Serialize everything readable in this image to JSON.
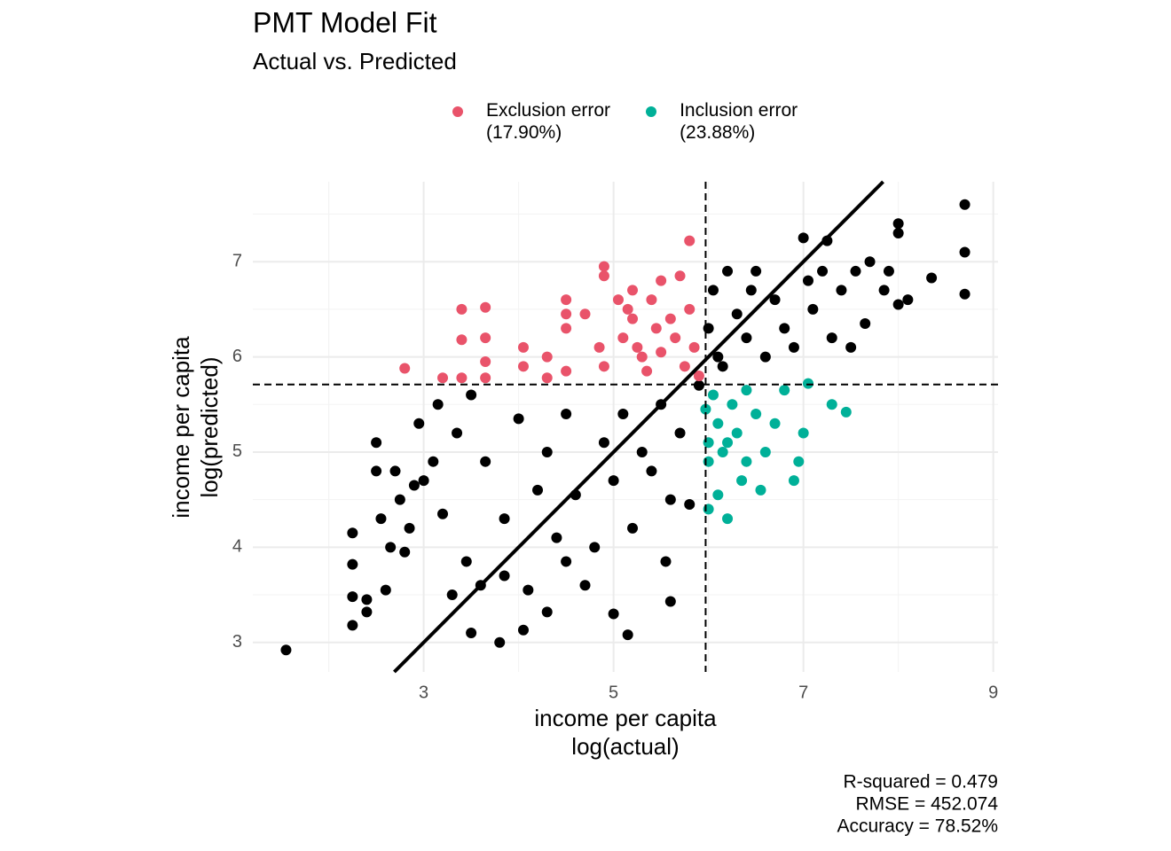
{
  "chart_data": {
    "type": "scatter",
    "title": "PMT Model Fit",
    "subtitle": "Actual vs. Predicted",
    "xlabel": [
      "income per capita",
      "log(actual)"
    ],
    "ylabel": [
      "income per capita",
      "log(predicted)"
    ],
    "xlim": [
      1.2,
      9.05
    ],
    "ylim": [
      2.69,
      7.84
    ],
    "xticks": [
      3,
      5,
      7,
      9
    ],
    "yticks": [
      3,
      4,
      5,
      6,
      7
    ],
    "grid": true,
    "vline": 5.97,
    "hline": 5.71,
    "identity_line": true,
    "legend_position": "top",
    "annotations": [
      "R-squared = 0.479",
      "RMSE = 452.074",
      "Accuracy = 78.52%"
    ],
    "series": [
      {
        "color": "#000000",
        "x": [
          1.55,
          2.25,
          2.25,
          2.25,
          2.25,
          2.4,
          2.4,
          2.5,
          2.5,
          2.55,
          2.6,
          2.65,
          2.7,
          2.75,
          2.8,
          2.85,
          2.9,
          2.95,
          3.0,
          3.1,
          3.15,
          3.2,
          3.35,
          3.3,
          3.45,
          3.5,
          3.5,
          3.6,
          3.65,
          3.8,
          3.85,
          3.85,
          4.0,
          4.05,
          4.1,
          4.2,
          4.3,
          4.3,
          4.4,
          4.5,
          4.5,
          4.6,
          4.7,
          4.8,
          4.9,
          5.0,
          5.0,
          5.1,
          5.15,
          5.2,
          5.3,
          5.4,
          5.5,
          5.55,
          5.6,
          5.6,
          5.7,
          5.8,
          5.9,
          6.0,
          6.05,
          6.1,
          6.2,
          6.3,
          6.4,
          6.5,
          6.6,
          6.7,
          6.8,
          6.9,
          7.0,
          7.05,
          7.1,
          7.2,
          7.25,
          7.3,
          7.4,
          7.5,
          7.55,
          7.65,
          7.7,
          7.85,
          8.0,
          8.0,
          8.0,
          8.1,
          8.35,
          8.7,
          8.7,
          8.7,
          7.9,
          6.15,
          6.45
        ],
        "values": [
          2.92,
          3.18,
          3.48,
          3.82,
          4.15,
          3.32,
          3.45,
          4.8,
          5.1,
          4.3,
          3.55,
          4.0,
          4.8,
          4.5,
          3.95,
          4.2,
          4.65,
          5.3,
          4.7,
          4.9,
          5.5,
          4.35,
          5.2,
          3.5,
          3.85,
          3.1,
          5.6,
          3.6,
          4.9,
          3.0,
          3.7,
          4.3,
          5.35,
          3.13,
          3.55,
          4.6,
          5.0,
          3.32,
          4.1,
          3.85,
          5.4,
          4.55,
          3.6,
          4.0,
          5.1,
          4.7,
          3.3,
          5.4,
          3.08,
          4.2,
          5.0,
          4.8,
          5.5,
          3.85,
          4.5,
          3.43,
          5.2,
          4.45,
          5.7,
          6.3,
          6.7,
          6.0,
          6.9,
          6.45,
          6.2,
          6.9,
          6.0,
          6.6,
          6.3,
          6.1,
          7.25,
          6.8,
          6.5,
          6.9,
          7.22,
          6.2,
          6.7,
          6.1,
          6.9,
          6.35,
          7.0,
          6.7,
          7.4,
          7.3,
          6.55,
          6.6,
          6.83,
          7.6,
          7.1,
          6.66,
          6.9,
          5.9,
          6.7
        ]
      },
      {
        "name": "Exclusion error\n(17.90%)",
        "color": "#E9536A",
        "x": [
          2.8,
          3.2,
          3.4,
          3.4,
          3.4,
          3.65,
          3.65,
          3.65,
          3.65,
          4.05,
          4.05,
          4.3,
          4.3,
          4.5,
          4.5,
          4.5,
          4.5,
          4.7,
          4.85,
          4.9,
          4.9,
          4.9,
          5.05,
          5.1,
          5.15,
          5.2,
          5.25,
          5.3,
          5.35,
          5.45,
          5.5,
          5.5,
          5.6,
          5.65,
          5.7,
          5.75,
          5.8,
          5.8,
          5.85,
          5.9,
          5.2,
          5.4
        ],
        "values": [
          5.88,
          5.78,
          6.5,
          6.18,
          5.78,
          6.52,
          6.2,
          5.95,
          5.78,
          6.1,
          5.9,
          6.0,
          5.78,
          6.6,
          6.45,
          6.3,
          5.85,
          6.45,
          6.1,
          6.95,
          6.85,
          5.9,
          6.6,
          6.2,
          6.5,
          6.4,
          6.1,
          6.0,
          5.85,
          6.3,
          6.8,
          6.05,
          6.4,
          6.2,
          6.85,
          5.9,
          7.22,
          6.5,
          6.1,
          5.8,
          6.7,
          6.6
        ]
      },
      {
        "name": "Inclusion error\n(23.88%)",
        "color": "#00B098",
        "x": [
          5.97,
          6.0,
          6.0,
          6.05,
          6.1,
          6.15,
          6.1,
          6.2,
          6.25,
          6.3,
          6.35,
          6.4,
          6.4,
          6.5,
          6.55,
          6.6,
          6.7,
          6.8,
          6.9,
          6.95,
          7.0,
          7.05,
          7.3,
          7.45,
          6.0,
          6.2
        ],
        "values": [
          5.45,
          5.1,
          4.9,
          5.6,
          5.3,
          5.0,
          4.55,
          4.3,
          5.5,
          5.2,
          4.7,
          4.9,
          5.65,
          5.4,
          4.6,
          5.0,
          5.3,
          5.65,
          4.7,
          4.9,
          5.2,
          5.72,
          5.5,
          5.42,
          4.4,
          5.1
        ]
      }
    ]
  }
}
